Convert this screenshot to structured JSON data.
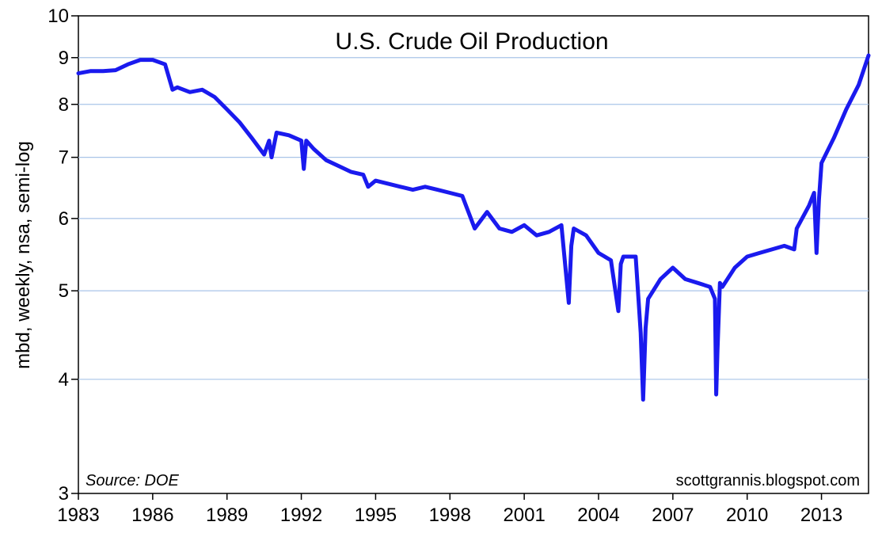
{
  "chart_data": {
    "type": "line",
    "title": "U.S. Crude Oil Production",
    "ylabel": "mbd, weekly, nsa, semi-log",
    "xlabel": "",
    "y_scale": "log",
    "ylim": [
      3,
      10
    ],
    "xlim": [
      1983,
      2014.9
    ],
    "y_ticks": [
      3,
      4,
      5,
      6,
      7,
      8,
      9,
      10
    ],
    "y_tick_labels": [
      "3",
      "4",
      "5",
      "6",
      "7",
      "8",
      "9",
      "10"
    ],
    "x_ticks": [
      1983,
      1986,
      1989,
      1992,
      1995,
      1998,
      2001,
      2004,
      2007,
      2010,
      2013
    ],
    "x_tick_labels": [
      "1983",
      "1986",
      "1989",
      "1992",
      "1995",
      "1998",
      "2001",
      "2004",
      "2007",
      "2010",
      "2013"
    ],
    "grid": "horizontal",
    "line_color": "#1a1aee",
    "source_note": "Source: DOE",
    "watermark": "scottgrannis.blogspot.com",
    "series": [
      {
        "x": [
          1983.0,
          1983.5,
          1984.0,
          1984.5,
          1985.0,
          1985.5,
          1986.0,
          1986.5,
          1986.8,
          1987.0,
          1987.5,
          1988.0,
          1988.5,
          1989.0,
          1989.5,
          1990.0,
          1990.5,
          1990.7,
          1990.8,
          1991.0,
          1991.5,
          1992.0,
          1992.1,
          1992.2,
          1992.5,
          1993.0,
          1993.5,
          1994.0,
          1994.5,
          1994.7,
          1995.0,
          1995.5,
          1996.0,
          1996.5,
          1997.0,
          1997.5,
          1998.0,
          1998.5,
          1999.0,
          1999.5,
          2000.0,
          2000.5,
          2001.0,
          2001.5,
          2002.0,
          2002.5,
          2002.8,
          2002.9,
          2003.0,
          2003.5,
          2004.0,
          2004.5,
          2004.8,
          2004.9,
          2005.0,
          2005.5,
          2005.7,
          2005.8,
          2005.9,
          2006.0,
          2006.5,
          2007.0,
          2007.5,
          2008.0,
          2008.5,
          2008.7,
          2008.75,
          2008.8,
          2008.9,
          2009.0,
          2009.5,
          2010.0,
          2010.5,
          2011.0,
          2011.5,
          2011.9,
          2012.0,
          2012.5,
          2012.7,
          2012.8,
          2012.9,
          2013.0,
          2013.5,
          2014.0,
          2014.5,
          2014.9
        ],
        "y": [
          8.65,
          8.7,
          8.7,
          8.72,
          8.85,
          8.95,
          8.95,
          8.85,
          8.3,
          8.35,
          8.25,
          8.3,
          8.15,
          7.9,
          7.65,
          7.35,
          7.05,
          7.3,
          7.0,
          7.45,
          7.4,
          7.3,
          6.8,
          7.3,
          7.15,
          6.95,
          6.85,
          6.75,
          6.7,
          6.5,
          6.6,
          6.55,
          6.5,
          6.45,
          6.5,
          6.45,
          6.4,
          6.35,
          5.85,
          6.1,
          5.85,
          5.8,
          5.9,
          5.75,
          5.8,
          5.9,
          4.85,
          5.6,
          5.85,
          5.75,
          5.5,
          5.4,
          4.75,
          5.35,
          5.45,
          5.45,
          4.5,
          3.8,
          4.55,
          4.9,
          5.15,
          5.3,
          5.15,
          5.1,
          5.05,
          4.9,
          3.85,
          4.3,
          5.1,
          5.05,
          5.3,
          5.45,
          5.5,
          5.55,
          5.6,
          5.55,
          5.85,
          6.2,
          6.4,
          5.5,
          6.3,
          6.9,
          7.35,
          7.9,
          8.4,
          9.05
        ]
      }
    ]
  }
}
